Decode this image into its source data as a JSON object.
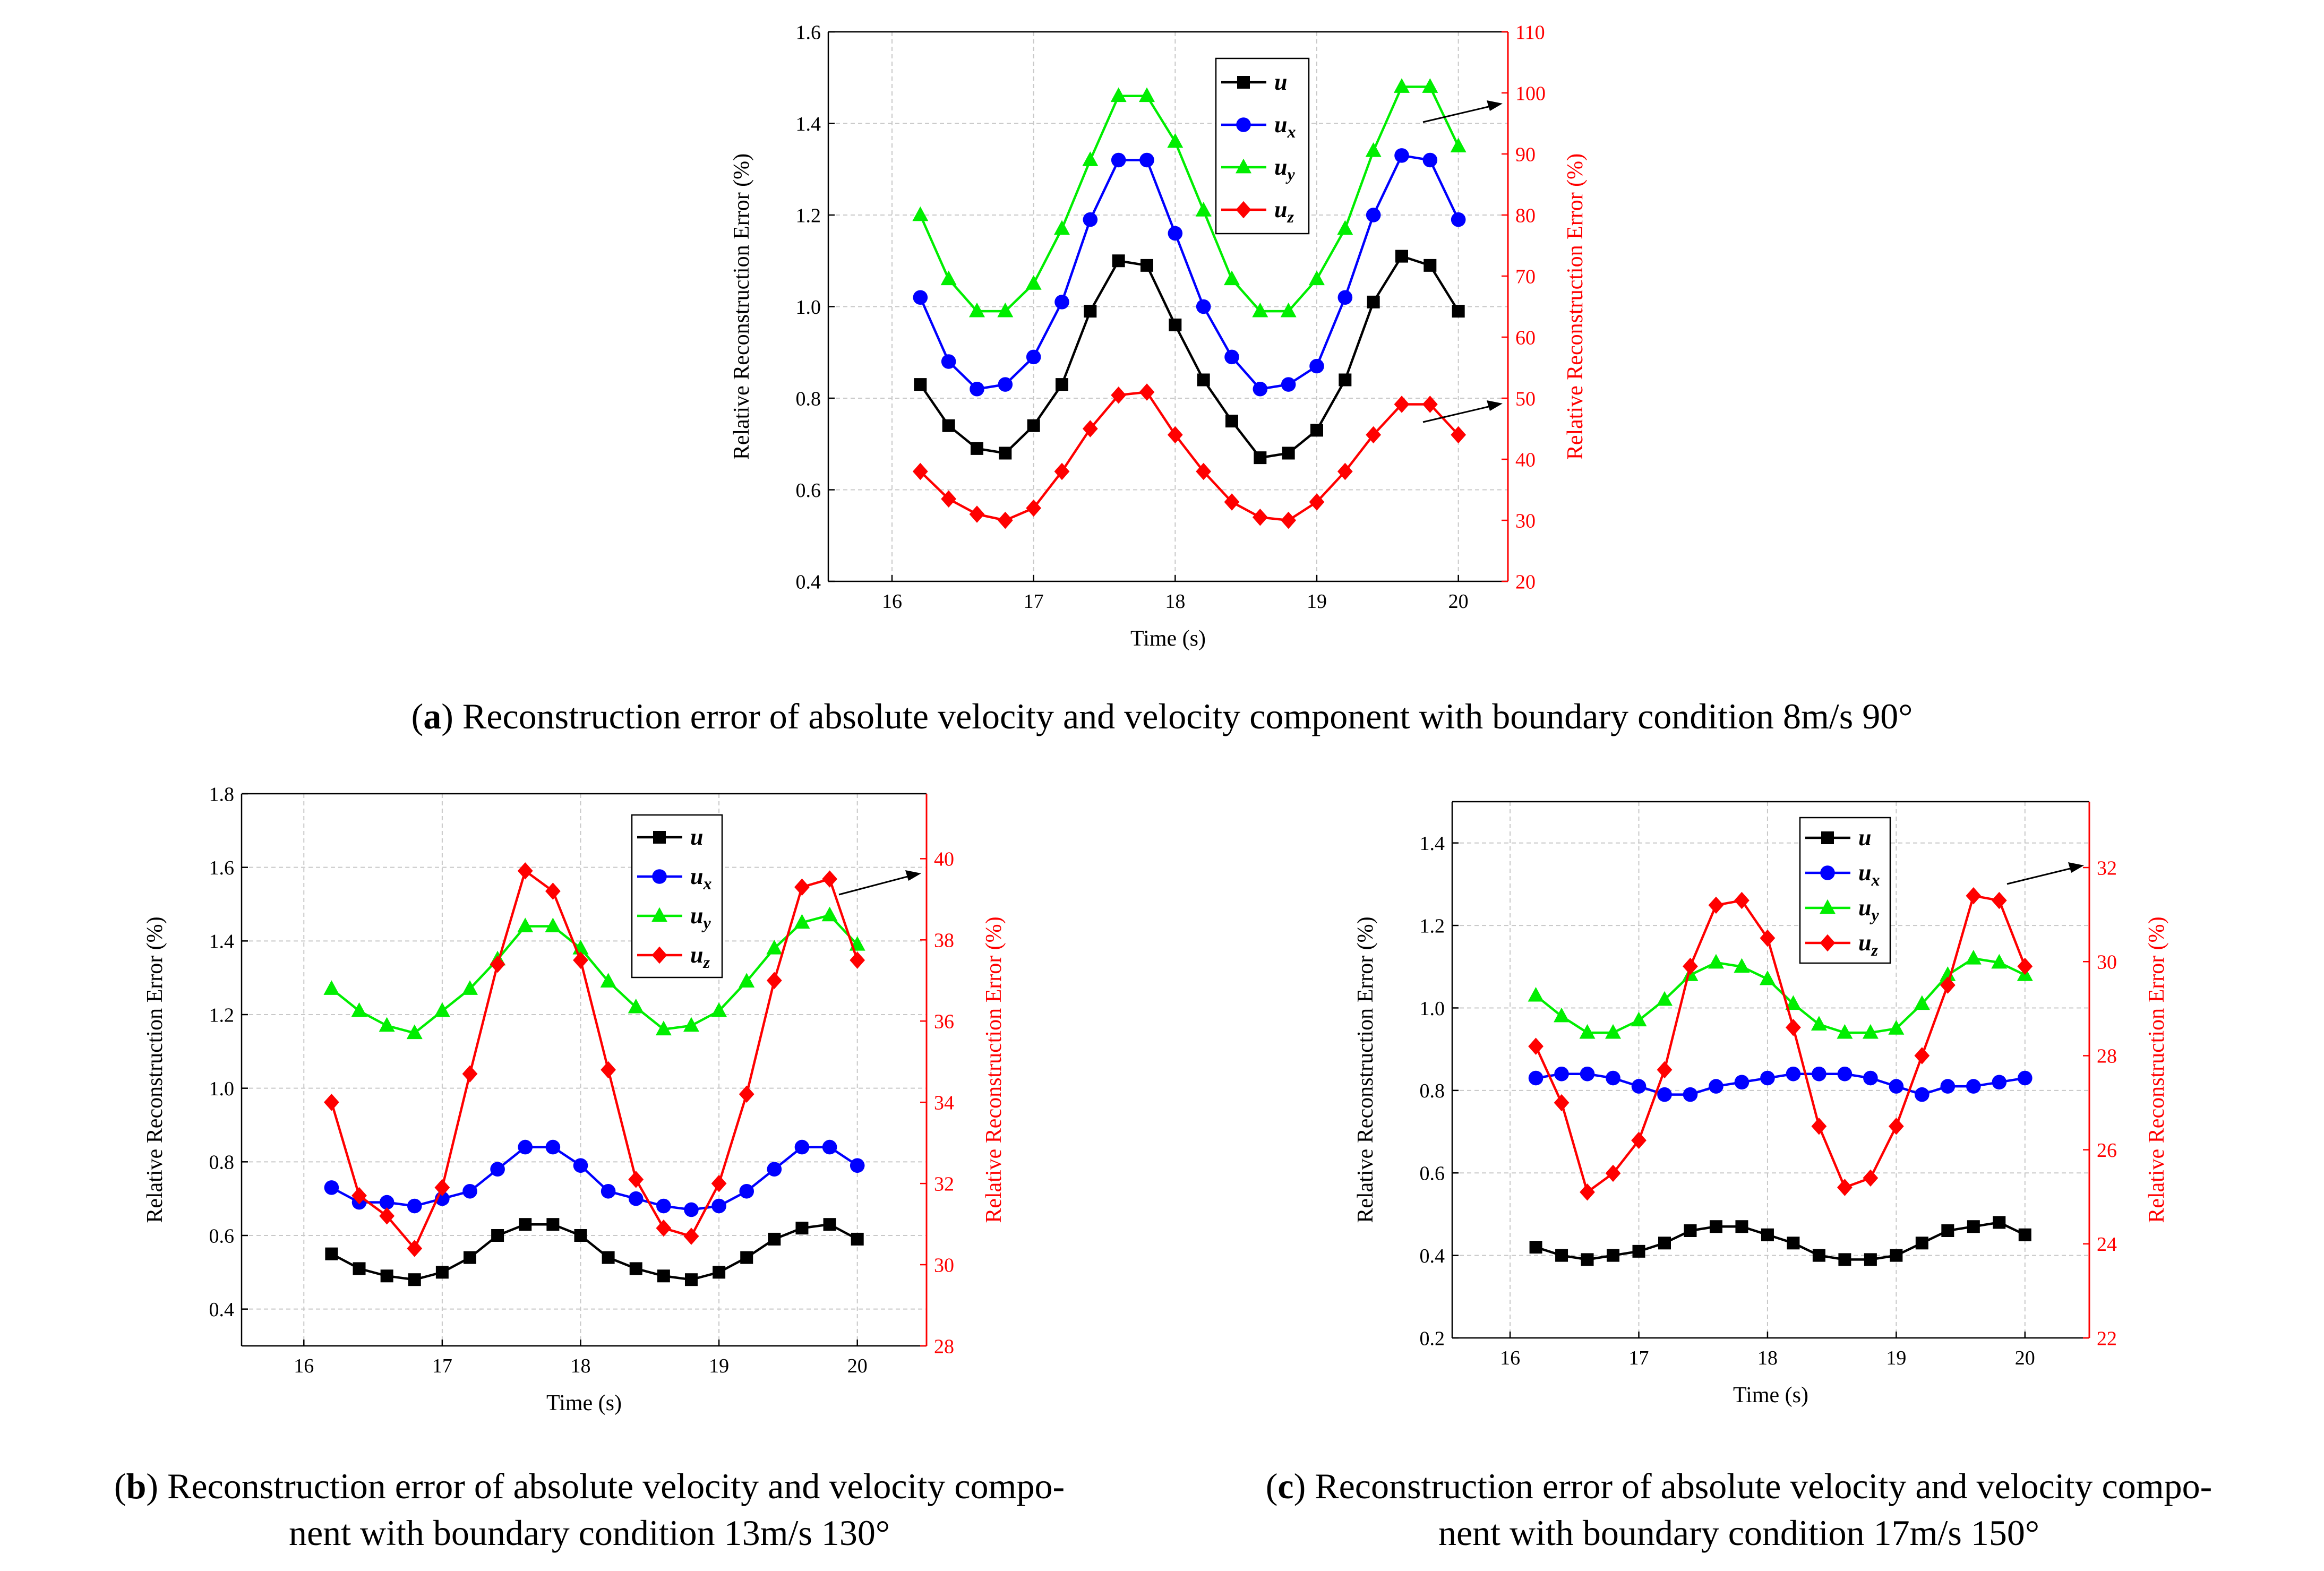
{
  "colors": {
    "u": "#000000",
    "ux": "#0000ff",
    "uy": "#00ee00",
    "uz": "#ff0000",
    "grid": "#c8c8c8"
  },
  "chart_data": [
    {
      "id": "a",
      "type": "line",
      "xlabel": "Time (s)",
      "ylabel": "Relative Reconstruction Error (%)",
      "y2label": "Relative Reconstruction Error (%)",
      "xlim": [
        15.55,
        20.35
      ],
      "xticks": [
        16,
        17,
        18,
        19,
        20
      ],
      "ylim": [
        0.4,
        1.6
      ],
      "yticks": [
        "0.4",
        "0.6",
        "0.8",
        "1.0",
        "1.2",
        "1.4",
        "1.6"
      ],
      "y2lim": [
        20,
        110
      ],
      "y2ticks": [
        "20",
        "30",
        "40",
        "50",
        "60",
        "70",
        "80",
        "90",
        "100",
        "110"
      ],
      "legend_position": "top-right",
      "x": [
        16.2,
        16.4,
        16.6,
        16.8,
        17.0,
        17.2,
        17.4,
        17.6,
        17.8,
        18.0,
        18.2,
        18.4,
        18.6,
        18.8,
        19.0,
        19.2,
        19.4,
        19.6,
        19.8,
        20.0
      ],
      "series": [
        {
          "name": "u",
          "sub": "",
          "marker": "square",
          "axis": "left",
          "values": [
            0.83,
            0.74,
            0.69,
            0.68,
            0.74,
            0.83,
            0.99,
            1.1,
            1.09,
            0.96,
            0.84,
            0.75,
            0.67,
            0.68,
            0.73,
            0.84,
            1.01,
            1.11,
            1.09,
            0.99
          ]
        },
        {
          "name": "u",
          "sub": "x",
          "marker": "circle",
          "axis": "left",
          "values": [
            1.02,
            0.88,
            0.82,
            0.83,
            0.89,
            1.01,
            1.19,
            1.32,
            1.32,
            1.16,
            1.0,
            0.89,
            0.82,
            0.83,
            0.87,
            1.02,
            1.2,
            1.33,
            1.32,
            1.19
          ]
        },
        {
          "name": "u",
          "sub": "y",
          "marker": "triangle",
          "axis": "left",
          "values": [
            1.2,
            1.06,
            0.99,
            0.99,
            1.05,
            1.17,
            1.32,
            1.46,
            1.46,
            1.36,
            1.21,
            1.06,
            0.99,
            0.99,
            1.06,
            1.17,
            1.34,
            1.48,
            1.48,
            1.35
          ]
        },
        {
          "name": "u",
          "sub": "z",
          "marker": "diamond",
          "axis": "right",
          "values": [
            38,
            33.5,
            31,
            30,
            32,
            38,
            45,
            50.5,
            51,
            44,
            38,
            33,
            30.5,
            30,
            33,
            38,
            44,
            49,
            49,
            44
          ]
        }
      ],
      "arrows": [
        "arrow to right axis at 100",
        "arrow to right axis at 50"
      ]
    },
    {
      "id": "b",
      "type": "line",
      "xlabel": "Time (s)",
      "ylabel": "Relative Reconstruction Error (%)",
      "y2label": "Relative Reconstruction Error (%)",
      "xlim": [
        15.55,
        20.5
      ],
      "xticks": [
        16,
        17,
        18,
        19,
        20
      ],
      "ylim": [
        0.3,
        1.8
      ],
      "yticks": [
        "0.4",
        "0.6",
        "0.8",
        "1.0",
        "1.2",
        "1.4",
        "1.6",
        "1.8"
      ],
      "y2lim": [
        28,
        41.6
      ],
      "y2ticks": [
        "28",
        "30",
        "32",
        "34",
        "36",
        "38",
        "40"
      ],
      "legend_position": "top-right",
      "x": [
        16.2,
        16.4,
        16.6,
        16.8,
        17.0,
        17.2,
        17.4,
        17.6,
        17.8,
        18.0,
        18.2,
        18.4,
        18.6,
        18.8,
        19.0,
        19.2,
        19.4,
        19.6,
        19.8,
        20.0
      ],
      "series": [
        {
          "name": "u",
          "sub": "",
          "marker": "square",
          "axis": "left",
          "values": [
            0.55,
            0.51,
            0.49,
            0.48,
            0.5,
            0.54,
            0.6,
            0.63,
            0.63,
            0.6,
            0.54,
            0.51,
            0.49,
            0.48,
            0.5,
            0.54,
            0.59,
            0.62,
            0.63,
            0.59
          ]
        },
        {
          "name": "u",
          "sub": "x",
          "marker": "circle",
          "axis": "left",
          "values": [
            0.73,
            0.69,
            0.69,
            0.68,
            0.7,
            0.72,
            0.78,
            0.84,
            0.84,
            0.79,
            0.72,
            0.7,
            0.68,
            0.67,
            0.68,
            0.72,
            0.78,
            0.84,
            0.84,
            0.79
          ]
        },
        {
          "name": "u",
          "sub": "y",
          "marker": "triangle",
          "axis": "left",
          "values": [
            1.27,
            1.21,
            1.17,
            1.15,
            1.21,
            1.27,
            1.35,
            1.44,
            1.44,
            1.38,
            1.29,
            1.22,
            1.16,
            1.17,
            1.21,
            1.29,
            1.38,
            1.45,
            1.47,
            1.39
          ]
        },
        {
          "name": "u",
          "sub": "z",
          "marker": "diamond",
          "axis": "right",
          "values": [
            34,
            31.7,
            31.2,
            30.4,
            31.9,
            34.7,
            37.4,
            39.7,
            39.2,
            37.5,
            34.8,
            32.1,
            30.9,
            30.7,
            32,
            34.2,
            37,
            39.3,
            39.5,
            37.5
          ]
        }
      ],
      "arrows": [
        "arrow to right axis at 39.5"
      ]
    },
    {
      "id": "c",
      "type": "line",
      "xlabel": "Time (s)",
      "ylabel": "Relative Reconstruction Error (%)",
      "y2label": "Relative Reconstruction Error (%)",
      "xlim": [
        15.55,
        20.5
      ],
      "xticks": [
        16,
        17,
        18,
        19,
        20
      ],
      "ylim": [
        0.2,
        1.5
      ],
      "yticks": [
        "0.2",
        "0.4",
        "0.6",
        "0.8",
        "1.0",
        "1.2",
        "1.4"
      ],
      "y2lim": [
        22,
        33.4
      ],
      "y2ticks": [
        "22",
        "24",
        "26",
        "28",
        "30",
        "32"
      ],
      "legend_position": "top-right",
      "x": [
        16.2,
        16.4,
        16.6,
        16.8,
        17.0,
        17.2,
        17.4,
        17.6,
        17.8,
        18.0,
        18.2,
        18.4,
        18.6,
        18.8,
        19.0,
        19.2,
        19.4,
        19.6,
        19.8,
        20.0
      ],
      "series": [
        {
          "name": "u",
          "sub": "",
          "marker": "square",
          "axis": "left",
          "values": [
            0.42,
            0.4,
            0.39,
            0.4,
            0.41,
            0.43,
            0.46,
            0.47,
            0.47,
            0.45,
            0.43,
            0.4,
            0.39,
            0.39,
            0.4,
            0.43,
            0.46,
            0.47,
            0.48,
            0.45
          ]
        },
        {
          "name": "u",
          "sub": "x",
          "marker": "circle",
          "axis": "left",
          "values": [
            0.83,
            0.84,
            0.84,
            0.83,
            0.81,
            0.79,
            0.79,
            0.81,
            0.82,
            0.83,
            0.84,
            0.84,
            0.84,
            0.83,
            0.81,
            0.79,
            0.81,
            0.81,
            0.82,
            0.83
          ]
        },
        {
          "name": "u",
          "sub": "y",
          "marker": "triangle",
          "axis": "left",
          "values": [
            1.03,
            0.98,
            0.94,
            0.94,
            0.97,
            1.02,
            1.08,
            1.11,
            1.1,
            1.07,
            1.01,
            0.96,
            0.94,
            0.94,
            0.95,
            1.01,
            1.08,
            1.12,
            1.11,
            1.08
          ]
        },
        {
          "name": "u",
          "sub": "z",
          "marker": "diamond",
          "axis": "right",
          "values": [
            28.2,
            27,
            25.1,
            25.5,
            26.2,
            27.7,
            29.9,
            31.2,
            31.3,
            30.5,
            28.6,
            26.5,
            25.2,
            25.4,
            26.5,
            28,
            29.5,
            31.4,
            31.3,
            29.9
          ]
        }
      ],
      "arrows": [
        "arrow to right axis at 31.5"
      ]
    }
  ],
  "captions": {
    "a": {
      "tag": "a",
      "text": " Reconstruction error of absolute velocity and velocity component with boundary condition 8m/s 90°"
    },
    "b": {
      "tag": "b",
      "text1": " Reconstruction error of absolute velocity and velocity compo-",
      "text2": "nent with boundary condition 13m/s 130°"
    },
    "c": {
      "tag": "c",
      "text1": " Reconstruction error of absolute velocity and velocity compo-",
      "text2": "nent with boundary condition 17m/s 150°"
    }
  }
}
